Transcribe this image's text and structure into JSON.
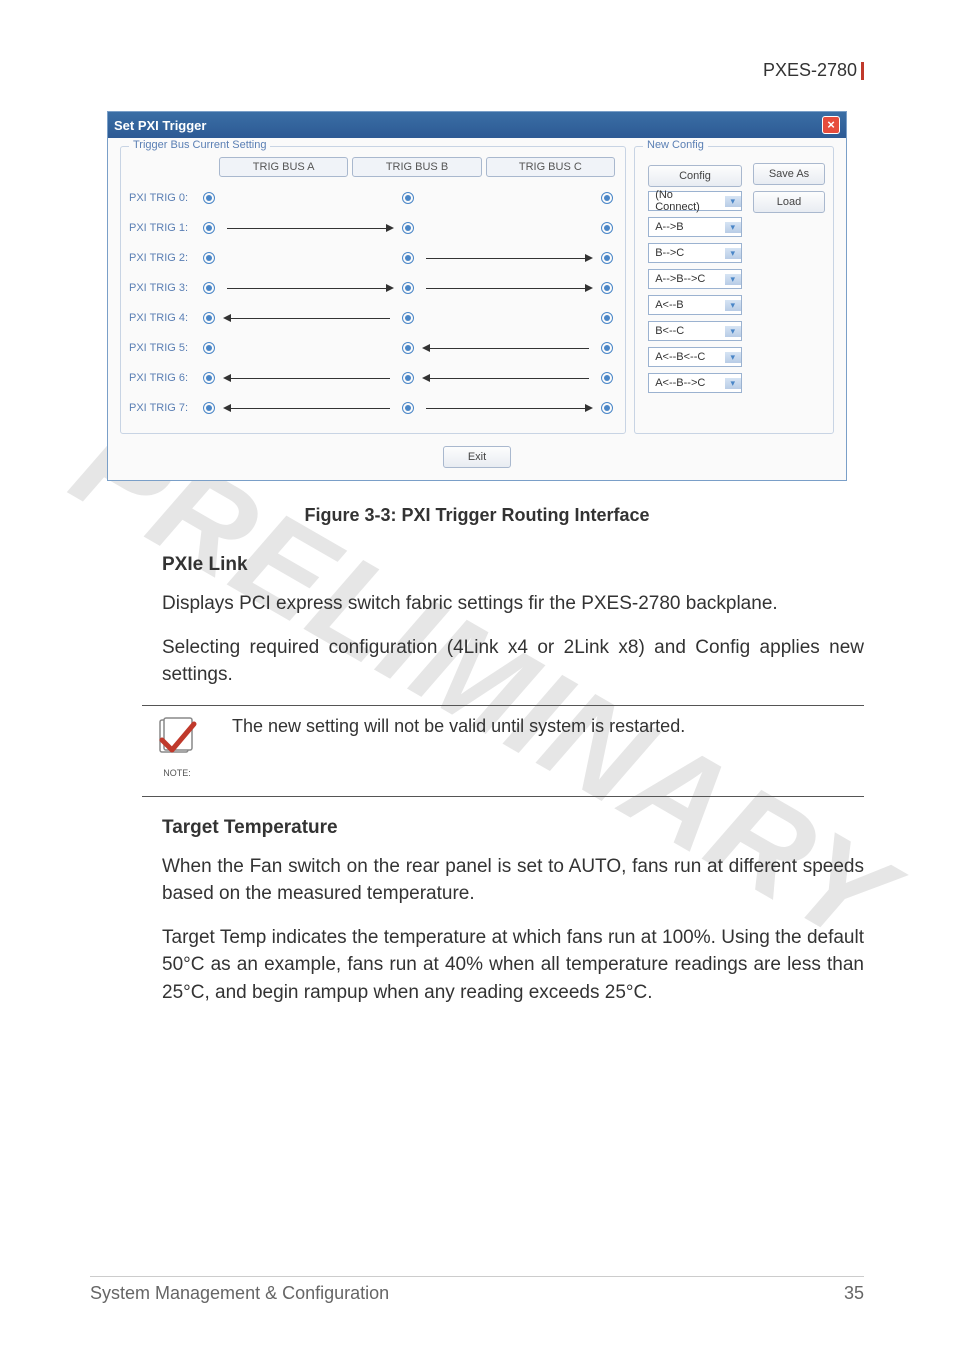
{
  "header": {
    "product": "PXES-2780"
  },
  "dialog": {
    "title": "Set PXI Trigger",
    "groupbox_trigger_title": "Trigger Bus Current Setting",
    "groupbox_config_title": "New Config",
    "bus_headers": {
      "a": "TRIG BUS A",
      "b": "TRIG BUS B",
      "c": "TRIG BUS C"
    },
    "config_button": "Config",
    "save_as_button": "Save As",
    "load_button": "Load",
    "exit_button": "Exit",
    "triggers": [
      {
        "label": "PXI TRIG 0:",
        "ab": "none",
        "bc": "none",
        "config": "(No Connect)"
      },
      {
        "label": "PXI TRIG 1:",
        "ab": "right",
        "bc": "none",
        "config": "A-->B"
      },
      {
        "label": "PXI TRIG 2:",
        "ab": "none",
        "bc": "right",
        "config": "B-->C"
      },
      {
        "label": "PXI TRIG 3:",
        "ab": "right",
        "bc": "right",
        "config": "A-->B-->C"
      },
      {
        "label": "PXI TRIG 4:",
        "ab": "left",
        "bc": "none",
        "config": "A<--B"
      },
      {
        "label": "PXI TRIG 5:",
        "ab": "none",
        "bc": "left",
        "config": "B<--C"
      },
      {
        "label": "PXI TRIG 6:",
        "ab": "left",
        "bc": "left",
        "config": "A<--B<--C"
      },
      {
        "label": "PXI TRIG 7:",
        "ab": "left",
        "bc": "right",
        "config": "A<--B-->C"
      }
    ]
  },
  "figure_caption": "Figure 3-3: PXI Trigger Routing Interface",
  "sections": {
    "pxie_link": {
      "title": "PXIe Link",
      "p1": "Displays PCI express switch fabric settings fir the PXES-2780 backplane.",
      "p2": "Selecting required configuration (4Link x4 or 2Link x8) and Config applies new settings."
    },
    "note": {
      "label": "NOTE:",
      "text": "The new setting will not be valid until system is restarted."
    },
    "target_temp": {
      "title": "Target Temperature",
      "p1": "When the Fan switch on the rear panel is set to AUTO, fans run at different speeds based on the measured temperature.",
      "p2": "Target Temp indicates the temperature at which fans run at 100%. Using the default 50°C as an example, fans run at 40% when all temperature readings are less than 25°C, and begin rampup when any reading exceeds 25°C."
    }
  },
  "footer": {
    "section": "System Management & Configuration",
    "page": "35"
  },
  "watermark": "PRELIMINARY",
  "colors": {
    "accent_red": "#c0392b",
    "dialog_titlebar": "#2d5a94",
    "link_blue": "#5a7fb4",
    "radio_blue": "#4a86c7"
  }
}
